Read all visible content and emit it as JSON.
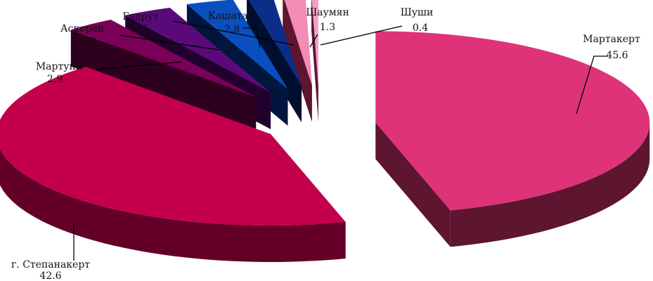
{
  "chart_data": {
    "type": "pie",
    "style": "3d-exploded",
    "title": "",
    "legend": "none",
    "slices": [
      {
        "name": "Мартакерт",
        "value": 45.6,
        "value_label": "45.6",
        "color": "#de3378",
        "side_color": "#5e1530"
      },
      {
        "name": "г. Степанакерт",
        "value": 42.6,
        "value_label": "42.6",
        "color": "#c4004d",
        "side_color": "#640028"
      },
      {
        "name": "Мартуни",
        "value": 2.9,
        "value_label": "2.9",
        "color": "#7a0058",
        "side_color": "#2e0020"
      },
      {
        "name": "Аскеран",
        "value": 2.9,
        "value_label": "2.9",
        "color": "#5a0a78",
        "side_color": "#22002e"
      },
      {
        "name": "Кашатаг",
        "value": 2.8,
        "value_label": "2.8",
        "color": "#0a4fc0",
        "side_color": "#00163e"
      },
      {
        "name": "Гадрут",
        "value": 1.5,
        "value_label": "1.5",
        "color": "#0a2e8a",
        "side_color": "#000e30"
      },
      {
        "name": "Шаумян",
        "value": 1.3,
        "value_label": "1.3",
        "color": "#f28cb4",
        "side_color": "#5e1530"
      },
      {
        "name": "Шуши",
        "value": 0.4,
        "value_label": "0.4",
        "color": "#f3a0c2",
        "side_color": "#5e1530"
      }
    ]
  }
}
